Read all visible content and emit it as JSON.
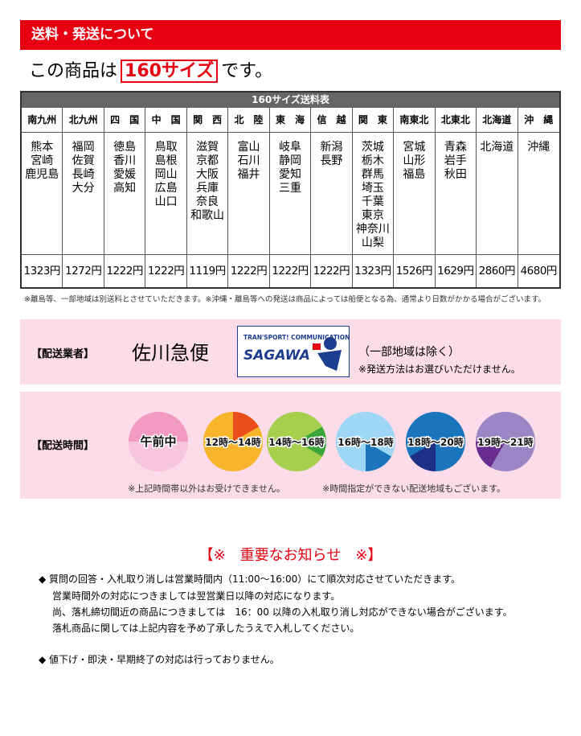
{
  "header": {
    "title": "送料・発送について"
  },
  "size_line": {
    "prefix": "この商品は",
    "size": "160サイズ",
    "suffix": "です。"
  },
  "table": {
    "title": "160サイズ送料表",
    "regions": [
      "南九州",
      "北九州",
      "四　国",
      "中　国",
      "関　西",
      "北　陸",
      "東　海",
      "信　越",
      "関　東",
      "南東北",
      "北東北",
      "北海道",
      "沖　縄"
    ],
    "prefectures": [
      [
        "熊本",
        "宮崎",
        "鹿児島"
      ],
      [
        "福岡",
        "佐賀",
        "長崎",
        "大分"
      ],
      [
        "徳島",
        "香川",
        "愛媛",
        "高知"
      ],
      [
        "鳥取",
        "島根",
        "岡山",
        "広島",
        "山口"
      ],
      [
        "滋賀",
        "京都",
        "大阪",
        "兵庫",
        "奈良",
        "和歌山"
      ],
      [
        "富山",
        "石川",
        "福井"
      ],
      [
        "岐阜",
        "静岡",
        "愛知",
        "三重"
      ],
      [
        "新潟",
        "長野"
      ],
      [
        "茨城",
        "栃木",
        "群馬",
        "埼玉",
        "千葉",
        "東京",
        "神奈川",
        "山梨"
      ],
      [
        "宮城",
        "山形",
        "福島"
      ],
      [
        "青森",
        "岩手",
        "秋田"
      ],
      [
        "北海道"
      ],
      [
        "沖縄"
      ]
    ],
    "prices": [
      "1323円",
      "1272円",
      "1222円",
      "1222円",
      "1119円",
      "1222円",
      "1222円",
      "1222円",
      "1323円",
      "1526円",
      "1629円",
      "2860円",
      "4680円"
    ]
  },
  "table_note": "※離島等、一部地域は別送料とさせていただきます。※沖縄・離島等への発送は商品によっては船便となる為、通常より日数がかかる場合がございます。",
  "carrier": {
    "label": "【配送業者】",
    "name": "佐川急便",
    "logo_top": "TRAN'SPORT! COMMUNICATION",
    "logo_name": "SAGAWA",
    "note1": "（一部地域は除く）",
    "note2": "※発送方法はお選びいただけません。"
  },
  "delivery_time": {
    "label": "【配送時間】",
    "slots": [
      "午前中",
      "12時～14時",
      "14時～16時",
      "16時～18時",
      "18時～20時",
      "19時～21時"
    ],
    "note1": "※上記時間帯以外はお受けできません。",
    "note2": "※時間指定ができない配送地域もございます。"
  },
  "notice": {
    "title": "【※　重要なお知らせ　※】",
    "lines": [
      "◆ 質問の回答・入札取り消しは営業時間内（11:00～16:00）にて順次対応させていただきます。",
      "営業時間外の対応につきましては翌営業日以降の対応になります。",
      "尚、落札締切間近の商品につきましては　16：00 以降の入札取り消し対応ができない場合がございます。",
      "落札商品に関しては上記内容を予め了承したうえで入札してください。",
      "◆ 値下げ・即決・早期終了の対応は行っておりません。"
    ]
  }
}
